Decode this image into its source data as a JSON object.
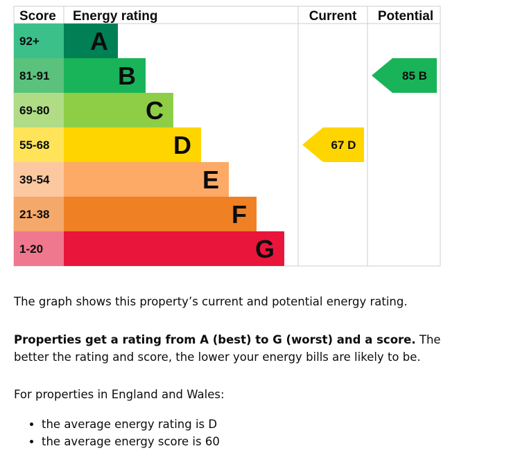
{
  "chart_data": {
    "type": "table",
    "headers": {
      "score": "Score",
      "rating": "Energy rating",
      "current": "Current",
      "potential": "Potential"
    },
    "bands": [
      {
        "letter": "A",
        "range": "92+",
        "color": "#008054",
        "score_color": "#3cc08a"
      },
      {
        "letter": "B",
        "range": "81-91",
        "color": "#19b459",
        "score_color": "#5ac27d"
      },
      {
        "letter": "C",
        "range": "69-80",
        "color": "#8dce46",
        "score_color": "#b0dc86"
      },
      {
        "letter": "D",
        "range": "55-68",
        "color": "#ffd500",
        "score_color": "#ffe45a"
      },
      {
        "letter": "E",
        "range": "39-54",
        "color": "#fcaa65",
        "score_color": "#fcc8a0"
      },
      {
        "letter": "F",
        "range": "21-38",
        "color": "#ef8023",
        "score_color": "#f4a96a"
      },
      {
        "letter": "G",
        "range": "1-20",
        "color": "#e9153b",
        "score_color": "#f0788e"
      }
    ],
    "current": {
      "score": 67,
      "letter": "D",
      "label": "67 D"
    },
    "potential": {
      "score": 85,
      "letter": "B",
      "label": "85 B"
    }
  },
  "text": {
    "intro": "The graph shows this property’s current and potential energy rating.",
    "bold_lead": "Properties get a rating from A (best) to G (worst) and a score.",
    "rest": " The better the rating and score, the lower your energy bills are likely to be.",
    "region": "For properties in England and Wales:",
    "bullets": [
      "the average energy rating is D",
      "the average energy score is 60"
    ]
  }
}
